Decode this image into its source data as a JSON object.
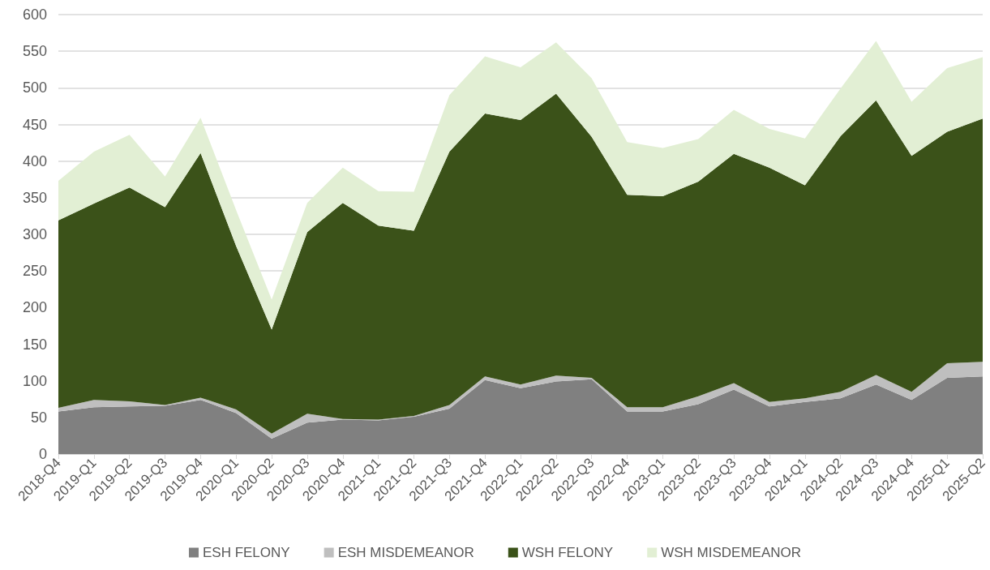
{
  "chart_data": {
    "type": "area",
    "stacked": true,
    "categories": [
      "2018-Q4",
      "2019-Q1",
      "2019-Q2",
      "2019-Q3",
      "2019-Q4",
      "2020-Q1",
      "2020-Q2",
      "2020-Q3",
      "2020-Q4",
      "2021-Q1",
      "2021-Q2",
      "2021-Q3",
      "2021-Q4",
      "2022-Q1",
      "2022-Q2",
      "2022-Q3",
      "2022-Q4",
      "2023-Q1",
      "2023-Q2",
      "2023-Q3",
      "2023-Q4",
      "2024-Q1",
      "2024-Q2",
      "2024-Q3",
      "2024-Q4",
      "2025-Q1",
      "2025-Q2"
    ],
    "series": [
      {
        "name": "ESH FELONY",
        "color": "#808080",
        "values": [
          58,
          64,
          65,
          66,
          74,
          56,
          21,
          43,
          47,
          46,
          51,
          62,
          101,
          90,
          99,
          102,
          58,
          58,
          68,
          88,
          65,
          71,
          76,
          95,
          74,
          104,
          106
        ]
      },
      {
        "name": "ESH MISDEMEANOR",
        "color": "#bfbfbf",
        "values": [
          5,
          10,
          7,
          1,
          3,
          5,
          7,
          12,
          1,
          1,
          1,
          5,
          5,
          5,
          8,
          2,
          6,
          6,
          11,
          9,
          6,
          5,
          9,
          13,
          11,
          20,
          20
        ]
      },
      {
        "name": "WSH FELONY",
        "color": "#3b5219",
        "values": [
          256,
          268,
          292,
          270,
          334,
          223,
          142,
          248,
          295,
          265,
          253,
          346,
          359,
          361,
          385,
          329,
          290,
          288,
          293,
          313,
          320,
          291,
          349,
          375,
          322,
          316,
          332
        ]
      },
      {
        "name": "WSH MISDEMEANOR",
        "color": "#e2efd4",
        "values": [
          54,
          71,
          72,
          42,
          48,
          49,
          41,
          40,
          48,
          47,
          53,
          77,
          78,
          72,
          70,
          80,
          72,
          66,
          58,
          60,
          53,
          64,
          65,
          81,
          74,
          87,
          84
        ]
      }
    ],
    "ylim": [
      0,
      600
    ],
    "yticks": [
      0,
      50,
      100,
      150,
      200,
      250,
      300,
      350,
      400,
      450,
      500,
      550,
      600
    ],
    "grid": "y",
    "legend": "bottom"
  }
}
